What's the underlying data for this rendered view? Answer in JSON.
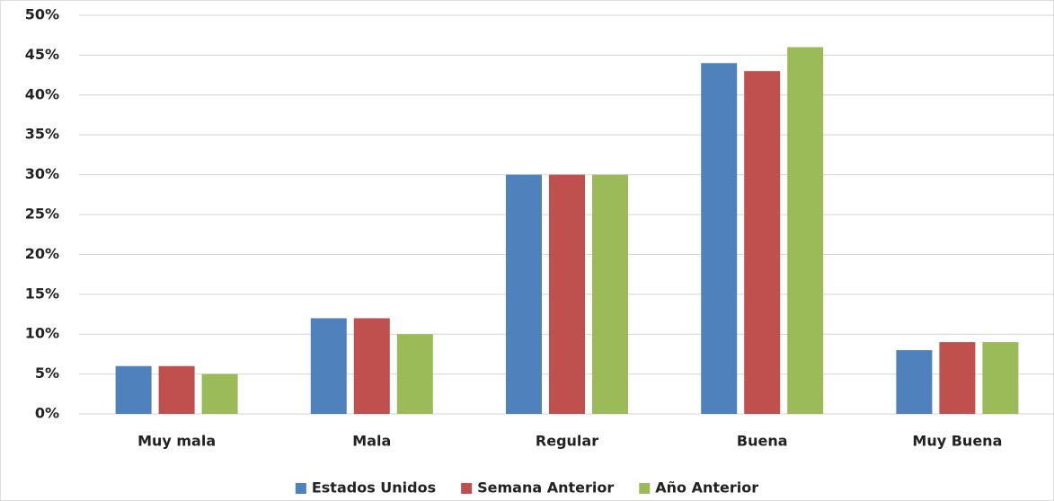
{
  "chart_data": {
    "type": "bar",
    "categories": [
      "Muy mala",
      "Mala",
      "Regular",
      "Buena",
      "Muy Buena"
    ],
    "series": [
      {
        "name": "Estados Unidos",
        "color": "#4f81bd",
        "values": [
          6,
          12,
          30,
          44,
          8
        ]
      },
      {
        "name": "Semana Anterior",
        "color": "#c0504d",
        "values": [
          6,
          12,
          30,
          43,
          9
        ]
      },
      {
        "name": "Año Anterior",
        "color": "#9bbb59",
        "values": [
          5,
          10,
          30,
          46,
          9
        ]
      }
    ],
    "ylim": [
      0,
      50
    ],
    "yticks": [
      {
        "value": 0,
        "label": "0%"
      },
      {
        "value": 5,
        "label": "5%"
      },
      {
        "value": 10,
        "label": "10%"
      },
      {
        "value": 15,
        "label": "15%"
      },
      {
        "value": 20,
        "label": "20%"
      },
      {
        "value": 25,
        "label": "25%"
      },
      {
        "value": 30,
        "label": "30%"
      },
      {
        "value": 35,
        "label": "35%"
      },
      {
        "value": 40,
        "label": "40%"
      },
      {
        "value": 45,
        "label": "45%"
      },
      {
        "value": 50,
        "label": "50%"
      }
    ],
    "grid": true,
    "legend": "bottom"
  }
}
